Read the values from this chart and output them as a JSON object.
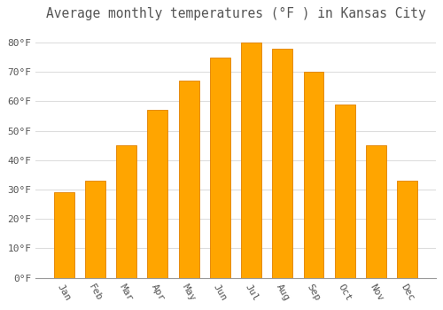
{
  "title": "Average monthly temperatures (°F ) in Kansas City",
  "months": [
    "Jan",
    "Feb",
    "Mar",
    "Apr",
    "May",
    "Jun",
    "Jul",
    "Aug",
    "Sep",
    "Oct",
    "Nov",
    "Dec"
  ],
  "temperatures": [
    29,
    33,
    45,
    57,
    67,
    75,
    80,
    78,
    70,
    59,
    45,
    33
  ],
  "bar_color": "#FFA500",
  "bar_edge_color": "#E08000",
  "background_color": "#FFFFFF",
  "plot_bg_color": "#FFFFFF",
  "grid_color": "#DDDDDD",
  "text_color": "#555555",
  "ylim": [
    0,
    85
  ],
  "yticks": [
    0,
    10,
    20,
    30,
    40,
    50,
    60,
    70,
    80
  ],
  "title_fontsize": 10.5,
  "tick_fontsize": 8,
  "font_family": "monospace"
}
